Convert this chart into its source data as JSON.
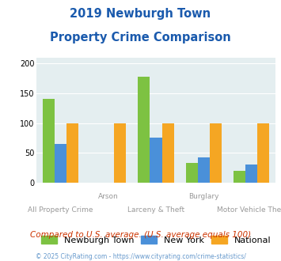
{
  "title_line1": "2019 Newburgh Town",
  "title_line2": "Property Crime Comparison",
  "categories": [
    "All Property Crime",
    "Arson",
    "Larceny & Theft",
    "Burglary",
    "Motor Vehicle Theft"
  ],
  "series": {
    "Newburgh Town": [
      140,
      0,
      178,
      33,
      20
    ],
    "New York": [
      65,
      0,
      75,
      42,
      31
    ],
    "National": [
      100,
      100,
      100,
      100,
      100
    ]
  },
  "colors": {
    "Newburgh Town": "#7dc242",
    "New York": "#4a90d9",
    "National": "#f5a623"
  },
  "ylim": [
    0,
    210
  ],
  "yticks": [
    0,
    50,
    100,
    150,
    200
  ],
  "bar_width": 0.25,
  "group_positions": [
    0,
    1,
    2,
    3,
    4
  ],
  "plot_bg_color": "#e4eef0",
  "fig_bg_color": "#ffffff",
  "title_color": "#1a5aad",
  "subtitle_text": "Compared to U.S. average. (U.S. average equals 100)",
  "subtitle_color": "#cc3300",
  "footer_text": "© 2025 CityRating.com - https://www.cityrating.com/crime-statistics/",
  "footer_color": "#6699cc",
  "legend_labels": [
    "Newburgh Town",
    "New York",
    "National"
  ],
  "grid_color": "#ffffff",
  "top_xlabels": {
    "1": "Arson",
    "3": "Burglary"
  },
  "bottom_xlabels": {
    "0": "All Property Crime",
    "2": "Larceny & Theft",
    "4": "Motor Vehicle Theft"
  }
}
